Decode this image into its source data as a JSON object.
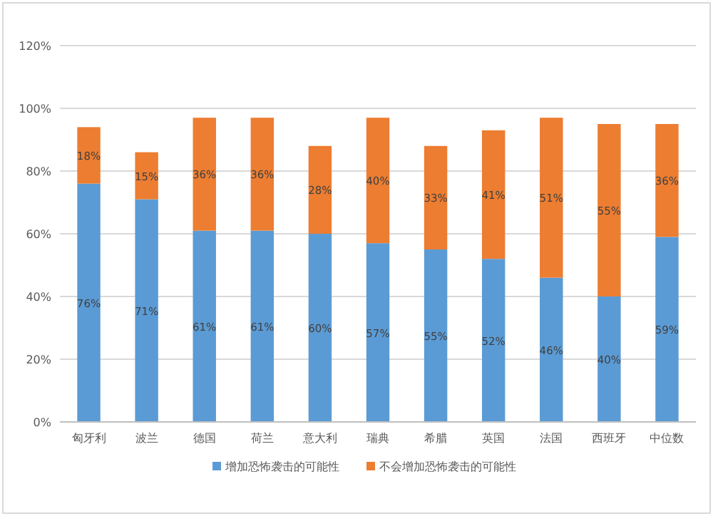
{
  "chart_data": {
    "type": "bar",
    "stacked": true,
    "categories": [
      "匈牙利",
      "波兰",
      "德国",
      "荷兰",
      "意大利",
      "瑞典",
      "希腊",
      "英国",
      "法国",
      "西班牙",
      "中位数"
    ],
    "series": [
      {
        "name": "增加恐怖袭击的可能性",
        "color": "#5b9bd5",
        "values": [
          76,
          71,
          61,
          61,
          60,
          57,
          55,
          52,
          46,
          40,
          59
        ],
        "value_labels": [
          "76%",
          "71%",
          "61%",
          "61%",
          "60%",
          "57%",
          "55%",
          "52%",
          "46%",
          "40%",
          "59%"
        ]
      },
      {
        "name": "不会增加恐怖袭击的可能性",
        "color": "#ed7d31",
        "values": [
          18,
          15,
          36,
          36,
          28,
          40,
          33,
          41,
          51,
          55,
          36
        ],
        "value_labels": [
          "18%",
          "15%",
          "36%",
          "36%",
          "28%",
          "40%",
          "33%",
          "41%",
          "51%",
          "55%",
          "36%"
        ]
      }
    ],
    "ylim": [
      0,
      120
    ],
    "yticks": [
      {
        "value": 0,
        "label": "0%"
      },
      {
        "value": 20,
        "label": "20%"
      },
      {
        "value": 40,
        "label": "40%"
      },
      {
        "value": 60,
        "label": "60%"
      },
      {
        "value": 80,
        "label": "80%"
      },
      {
        "value": 100,
        "label": "100%"
      },
      {
        "value": 120,
        "label": "120%"
      }
    ],
    "grid": "y",
    "legend": "bottom"
  }
}
